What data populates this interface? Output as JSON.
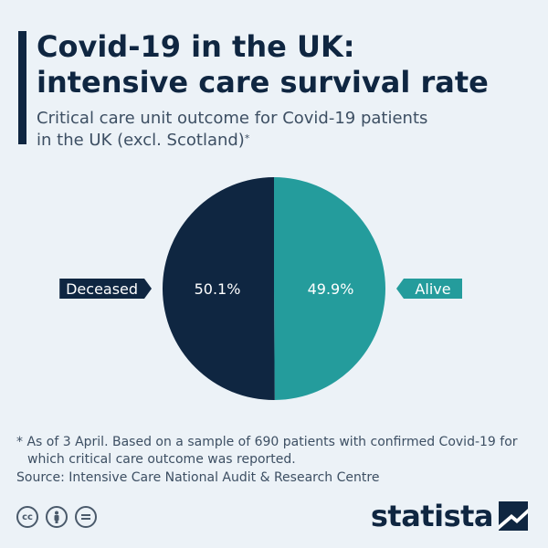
{
  "header": {
    "title_line1": "Covid-19 in the UK:",
    "title_line2": "intensive care survival rate",
    "subtitle_line1": "Critical care unit outcome for Covid-19 patients",
    "subtitle_line2": "in the UK (excl. Scotland)",
    "subtitle_mark": "*"
  },
  "chart_data": {
    "type": "pie",
    "slices": [
      {
        "label": "Alive",
        "value": 49.9,
        "value_label": "49.9%",
        "color": "#249c9c"
      },
      {
        "label": "Deceased",
        "value": 50.1,
        "value_label": "50.1%",
        "color": "#0f2641"
      }
    ],
    "legend": "side labels"
  },
  "footer": {
    "footnote_line1": "* As of 3 April. Based on a sample of 690 patients with confirmed Covid-19 for",
    "footnote_line2": "which critical care outcome was reported.",
    "source": "Source: Intensive Care National Audit & Research Centre",
    "license_icons": [
      "cc-icon",
      "by-icon",
      "nd-icon"
    ],
    "brand": "statista"
  }
}
